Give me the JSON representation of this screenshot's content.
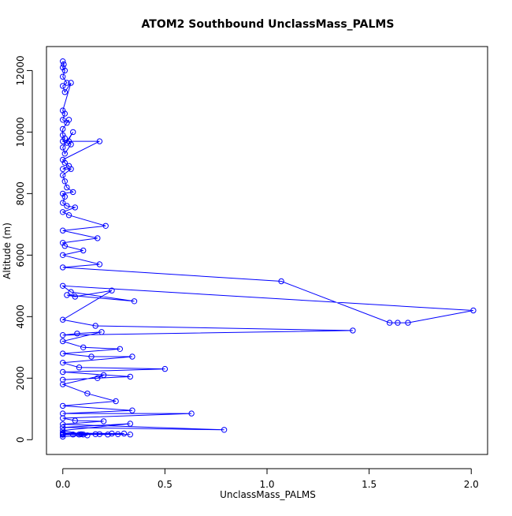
{
  "chart_data": {
    "type": "line",
    "title": "ATOM2 Southbound UnclassMass_PALMS",
    "xlabel": "UnclassMass_PALMS",
    "ylabel": "Altitude (m)",
    "xlim": [
      -0.08,
      2.08
    ],
    "ylim": [
      -480,
      12780
    ],
    "x_ticks": [
      0.0,
      0.5,
      1.0,
      1.5,
      2.0
    ],
    "x_tick_labels": [
      "0.0",
      "0.5",
      "1.0",
      "1.5",
      "2.0"
    ],
    "y_ticks": [
      0,
      2000,
      4000,
      6000,
      8000,
      10000,
      12000
    ],
    "y_tick_labels": [
      "0",
      "2000",
      "4000",
      "6000",
      "8000",
      "10000",
      "12000"
    ],
    "grid": false,
    "legend": "none",
    "series_style": {
      "color": "#0000ff",
      "marker": "open-circle",
      "connected": true
    },
    "series": [
      {
        "x": [
          0.0,
          0.005,
          0.0,
          0.01,
          0.0,
          0.02,
          0.0,
          0.01,
          0.04,
          0.0,
          0.01,
          0.0,
          0.02,
          0.03,
          0.0,
          0.0,
          0.01,
          0.0,
          0.02,
          0.05,
          0.0,
          0.01,
          0.04,
          0.03,
          0.18,
          0.0,
          0.01,
          0.03,
          0.0,
          0.04,
          0.0,
          0.01,
          0.02,
          0.05,
          0.0,
          0.01,
          0.0,
          0.02,
          0.06,
          0.0,
          0.03,
          0.21,
          0.0,
          0.17,
          0.0,
          0.01,
          0.1,
          0.0,
          0.18,
          0.0,
          1.07,
          1.6,
          1.64,
          1.69,
          2.01,
          0.0,
          0.04,
          0.35,
          0.02,
          0.06,
          0.24,
          0.0,
          0.16,
          1.42,
          0.0,
          0.07,
          0.19,
          0.0,
          0.1,
          0.28,
          0.0,
          0.14,
          0.34,
          0.0,
          0.08,
          0.5,
          0.0,
          0.33,
          0.0,
          0.17,
          0.2,
          0.0,
          0.12,
          0.26,
          0.0,
          0.34,
          0.0,
          0.63,
          0.0,
          0.06,
          0.2,
          0.0,
          0.79,
          0.0,
          0.33,
          0.0,
          0.09,
          0.16,
          0.0,
          0.24,
          0.0,
          0.1,
          0.18,
          0.0,
          0.08,
          0.3,
          0.0,
          0.33,
          0.0,
          0.05,
          0.0,
          0.27,
          0.0,
          0.22,
          0.0,
          0.12,
          0.0
        ],
        "y": [
          12300,
          12200,
          12100,
          12000,
          11800,
          11600,
          11500,
          11300,
          11600,
          10700,
          10600,
          10400,
          10300,
          10400,
          10100,
          9900,
          9800,
          9700,
          9650,
          10000,
          9500,
          9300,
          9600,
          9700,
          9700,
          9100,
          9000,
          8900,
          8800,
          8800,
          8600,
          8400,
          8200,
          8050,
          8000,
          7900,
          7700,
          7600,
          7550,
          7400,
          7300,
          6950,
          6800,
          6550,
          6400,
          6300,
          6150,
          6000,
          5700,
          5600,
          5150,
          3800,
          3800,
          3800,
          4200,
          5000,
          4800,
          4500,
          4700,
          4650,
          4850,
          3900,
          3700,
          3550,
          3400,
          3450,
          3500,
          3200,
          3000,
          2950,
          2800,
          2700,
          2700,
          2500,
          2350,
          2300,
          2200,
          2050,
          1950,
          2000,
          2100,
          1800,
          1500,
          1250,
          1100,
          950,
          850,
          850,
          700,
          620,
          600,
          500,
          320,
          400,
          520,
          300,
          180,
          180,
          220,
          200,
          180,
          170,
          180,
          190,
          170,
          200,
          190,
          170,
          180,
          170,
          160,
          180,
          170,
          170,
          180,
          140,
          100
        ]
      }
    ]
  }
}
